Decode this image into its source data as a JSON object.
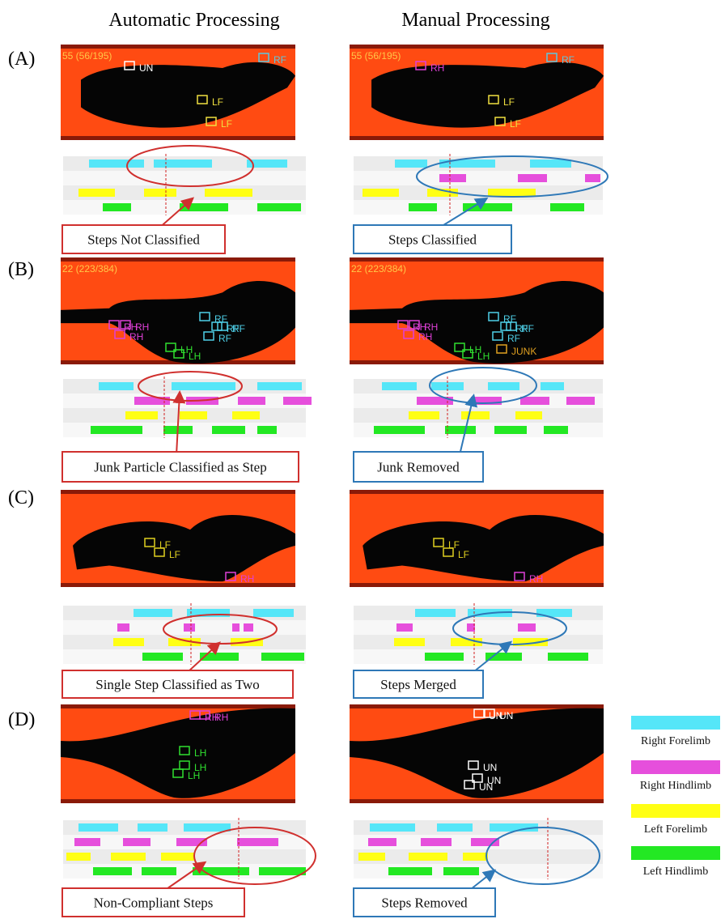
{
  "headers": {
    "automatic": "Automatic Processing",
    "manual": "Manual Processing"
  },
  "panels": [
    {
      "label": "(A)",
      "automatic": {
        "frame_counter": "55 (56/195)",
        "tags": [
          "UN",
          "RF",
          "LF",
          "LF"
        ],
        "callout": "Steps Not Classified"
      },
      "manual": {
        "frame_counter": "55 (56/195)",
        "tags": [
          "RH",
          "RF",
          "LF",
          "LF"
        ],
        "callout": "Steps Classified"
      }
    },
    {
      "label": "(B)",
      "automatic": {
        "frame_counter": "22 (223/384)",
        "tags": [
          "RH",
          "RH",
          "RH",
          "RF",
          "RF",
          "RF",
          "RF",
          "LH",
          "LH"
        ],
        "callout": "Junk Particle Classified as Step"
      },
      "manual": {
        "frame_counter": "22 (223/384)",
        "tags": [
          "RH",
          "RH",
          "RH",
          "RF",
          "RF",
          "RF",
          "RF",
          "LH",
          "LH",
          "JUNK"
        ],
        "callout": "Junk Removed"
      }
    },
    {
      "label": "(C)",
      "automatic": {
        "tags": [
          "LF",
          "LF",
          "RH"
        ],
        "callout": "Single Step Classified as Two"
      },
      "manual": {
        "tags": [
          "LF",
          "LF",
          "RH"
        ],
        "callout": "Steps Merged"
      }
    },
    {
      "label": "(D)",
      "automatic": {
        "tags": [
          "RH",
          "RH",
          "LH",
          "LH",
          "LH"
        ],
        "callout": "Non-Compliant Steps"
      },
      "manual": {
        "tags": [
          "UN",
          "UN",
          "UN",
          "UN",
          "UN"
        ],
        "callout": "Steps Removed"
      }
    }
  ],
  "legend": [
    "Right Forelimb",
    "Right Hindlimb",
    "Left Forelimb",
    "Left Hindlimb"
  ]
}
